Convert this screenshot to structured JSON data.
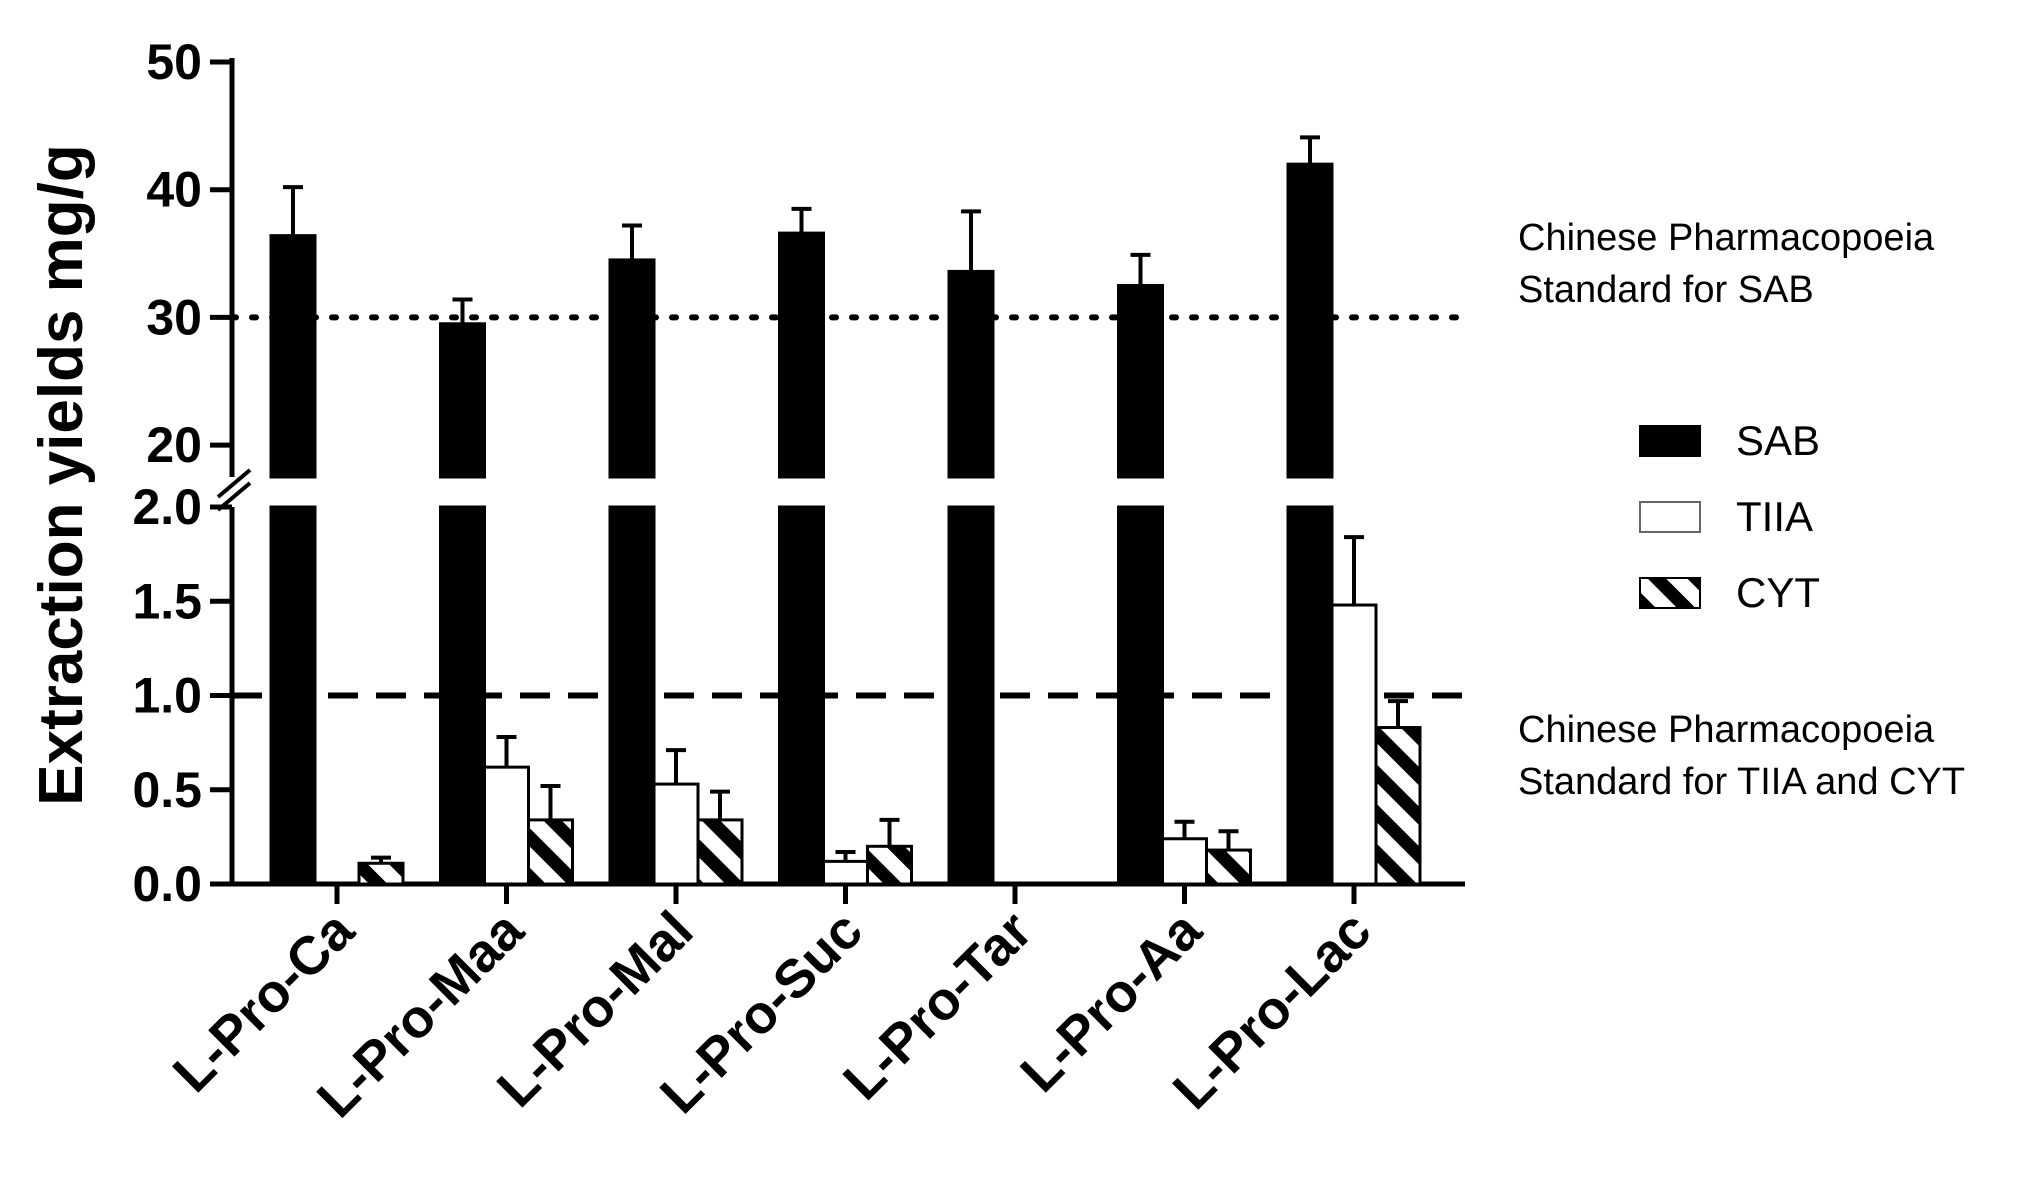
{
  "chart_data": {
    "type": "bar",
    "ylabel": "Extraction yields mg/g",
    "xlabel": "",
    "title": "",
    "categories": [
      "L-Pro-Ca",
      "L-Pro-Maa",
      "L-Pro-Mal",
      "L-Pro-Suc",
      "L-Pro-Tar",
      "L-Pro-Aa",
      "L-Pro-Lac"
    ],
    "y_axis_broken": true,
    "y_segments": [
      {
        "ylim": [
          0,
          2.0
        ],
        "ticks": [
          "0.0",
          "0.5",
          "1.0",
          "1.5",
          "2.0"
        ]
      },
      {
        "ylim": [
          17.5,
          50
        ],
        "ticks": [
          "20",
          "30",
          "40",
          "50"
        ]
      }
    ],
    "series": [
      {
        "name": "SAB",
        "fill": "solid",
        "color": "#000000",
        "values": [
          36.4,
          29.5,
          34.5,
          36.6,
          33.6,
          32.5,
          42.0
        ],
        "errors": [
          3.8,
          1.9,
          2.7,
          1.9,
          4.7,
          2.4,
          2.1
        ]
      },
      {
        "name": "TIIA",
        "fill": "open",
        "color": "#ffffff",
        "values": [
          0,
          0.62,
          0.53,
          0.12,
          0,
          0.24,
          1.48
        ],
        "errors": [
          0,
          0.16,
          0.18,
          0.05,
          0,
          0.09,
          0.36
        ]
      },
      {
        "name": "CYT",
        "fill": "hatched",
        "color": "#000000",
        "values": [
          0.11,
          0.34,
          0.34,
          0.2,
          0,
          0.18,
          0.83
        ],
        "errors": [
          0.03,
          0.18,
          0.15,
          0.14,
          0,
          0.1,
          0.14
        ]
      }
    ],
    "reference_lines": [
      {
        "y": 30,
        "style": "dotted",
        "label_lines": [
          "Chinese Pharmacopoeia",
          "Standard for SAB"
        ]
      },
      {
        "y": 1.0,
        "style": "dashed",
        "label_lines": [
          "Chinese Pharmacopoeia",
          "Standard for TIIA and CYT"
        ]
      }
    ],
    "legend": {
      "position": "right",
      "entries": [
        "SAB",
        "TIIA",
        "CYT"
      ]
    },
    "grid": false
  }
}
